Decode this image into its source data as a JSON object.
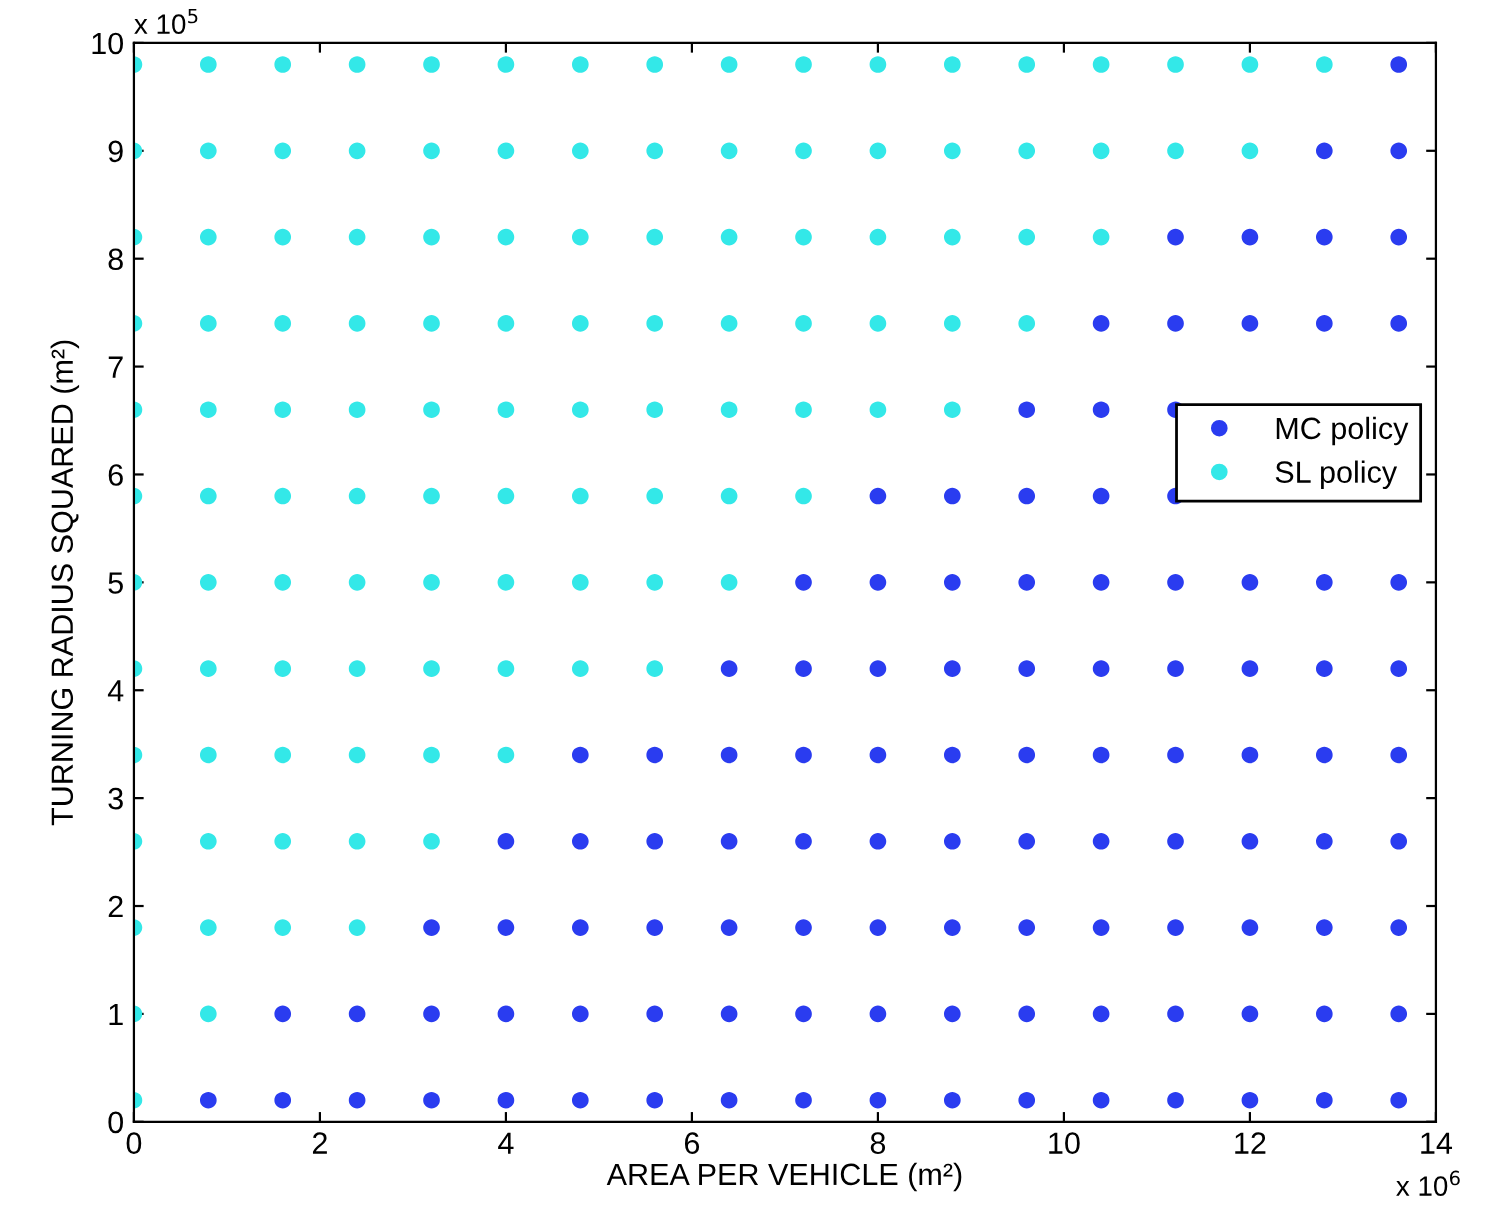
{
  "chart_data": {
    "type": "scatter",
    "xlabel": "AREA PER VEHICLE (m²)",
    "ylabel": "TURNING RADIUS SQUARED (m²)",
    "annotations": [
      "x 10$^{5}$",
      "x 10$^{6}$"
    ],
    "xlim": [
      0,
      14
    ],
    "xticks": [
      0,
      2,
      4,
      6,
      8,
      10,
      12,
      14
    ],
    "ylim": [
      0,
      10
    ],
    "yticks": [
      0,
      1,
      2,
      3,
      4,
      5,
      6,
      7,
      8,
      9,
      10
    ],
    "grid": false,
    "legend": "right",
    "marker": "circle",
    "series": [
      {
        "name": "MC policy",
        "color": "#2a3cf0",
        "x": [
          0.8,
          1.6,
          2.4,
          3.2,
          4.0,
          4.8,
          5.6,
          6.4,
          7.2,
          8.0,
          8.8,
          9.6,
          10.4,
          11.2,
          12.0,
          12.8,
          13.6,
          1.6,
          2.4,
          3.2,
          4.0,
          4.8,
          5.6,
          6.4,
          7.2,
          8.0,
          8.8,
          9.6,
          10.4,
          11.2,
          12.0,
          12.8,
          13.6,
          3.2,
          4.0,
          4.8,
          5.6,
          6.4,
          7.2,
          8.0,
          8.8,
          9.6,
          10.4,
          11.2,
          12.0,
          12.8,
          13.6,
          4.0,
          4.8,
          5.6,
          6.4,
          7.2,
          8.0,
          8.8,
          9.6,
          10.4,
          11.2,
          12.0,
          12.8,
          13.6,
          4.8,
          5.6,
          6.4,
          7.2,
          8.0,
          8.8,
          9.6,
          10.4,
          11.2,
          12.0,
          12.8,
          13.6,
          6.4,
          7.2,
          8.0,
          8.8,
          9.6,
          10.4,
          11.2,
          12.0,
          12.8,
          13.6,
          7.2,
          8.0,
          8.8,
          9.6,
          10.4,
          11.2,
          12.0,
          12.8,
          13.6,
          8.0,
          8.8,
          9.6,
          10.4,
          11.2,
          9.6,
          10.4,
          11.2,
          10.4,
          11.2,
          12.0,
          12.8,
          13.6,
          11.2,
          12.0,
          12.8,
          13.6,
          12.8,
          13.6,
          13.6
        ],
        "values": [
          0.2,
          0.2,
          0.2,
          0.2,
          0.2,
          0.2,
          0.2,
          0.2,
          0.2,
          0.2,
          0.2,
          0.2,
          0.2,
          0.2,
          0.2,
          0.2,
          0.2,
          1.0,
          1.0,
          1.0,
          1.0,
          1.0,
          1.0,
          1.0,
          1.0,
          1.0,
          1.0,
          1.0,
          1.0,
          1.0,
          1.0,
          1.0,
          1.0,
          1.8,
          1.8,
          1.8,
          1.8,
          1.8,
          1.8,
          1.8,
          1.8,
          1.8,
          1.8,
          1.8,
          1.8,
          1.8,
          1.8,
          2.6,
          2.6,
          2.6,
          2.6,
          2.6,
          2.6,
          2.6,
          2.6,
          2.6,
          2.6,
          2.6,
          2.6,
          2.6,
          3.4,
          3.4,
          3.4,
          3.4,
          3.4,
          3.4,
          3.4,
          3.4,
          3.4,
          3.4,
          3.4,
          3.4,
          4.2,
          4.2,
          4.2,
          4.2,
          4.2,
          4.2,
          4.2,
          4.2,
          4.2,
          4.2,
          5.0,
          5.0,
          5.0,
          5.0,
          5.0,
          5.0,
          5.0,
          5.0,
          5.0,
          5.8,
          5.8,
          5.8,
          5.8,
          5.8,
          6.6,
          6.6,
          6.6,
          7.4,
          7.4,
          7.4,
          7.4,
          7.4,
          8.2,
          8.2,
          8.2,
          8.2,
          9.0,
          9.0,
          9.8
        ]
      },
      {
        "name": "SL policy",
        "color": "#33e8e8",
        "x": [
          0,
          0,
          0.8,
          0,
          0.8,
          1.6,
          2.4,
          0,
          0.8,
          1.6,
          2.4,
          3.2,
          0,
          0.8,
          1.6,
          2.4,
          3.2,
          4.0,
          0,
          0.8,
          1.6,
          2.4,
          3.2,
          4.0,
          4.8,
          5.6,
          0,
          0.8,
          1.6,
          2.4,
          3.2,
          4.0,
          4.8,
          5.6,
          6.4,
          0,
          0.8,
          1.6,
          2.4,
          3.2,
          4.0,
          4.8,
          5.6,
          6.4,
          7.2,
          0,
          0.8,
          1.6,
          2.4,
          3.2,
          4.0,
          4.8,
          5.6,
          6.4,
          7.2,
          8.0,
          8.8,
          0,
          0.8,
          1.6,
          2.4,
          3.2,
          4.0,
          4.8,
          5.6,
          6.4,
          7.2,
          8.0,
          8.8,
          9.6,
          0,
          0.8,
          1.6,
          2.4,
          3.2,
          4.0,
          4.8,
          5.6,
          6.4,
          7.2,
          8.0,
          8.8,
          9.6,
          10.4,
          0,
          0.8,
          1.6,
          2.4,
          3.2,
          4.0,
          4.8,
          5.6,
          6.4,
          7.2,
          8.0,
          8.8,
          9.6,
          10.4,
          11.2,
          12.0,
          0,
          0.8,
          1.6,
          2.4,
          3.2,
          4.0,
          4.8,
          5.6,
          6.4,
          7.2,
          8.0,
          8.8,
          9.6,
          10.4,
          11.2,
          12.0,
          12.8
        ],
        "values": [
          0.2,
          1.0,
          1.0,
          1.8,
          1.8,
          1.8,
          1.8,
          2.6,
          2.6,
          2.6,
          2.6,
          2.6,
          3.4,
          3.4,
          3.4,
          3.4,
          3.4,
          3.4,
          4.2,
          4.2,
          4.2,
          4.2,
          4.2,
          4.2,
          4.2,
          4.2,
          5.0,
          5.0,
          5.0,
          5.0,
          5.0,
          5.0,
          5.0,
          5.0,
          5.0,
          5.8,
          5.8,
          5.8,
          5.8,
          5.8,
          5.8,
          5.8,
          5.8,
          5.8,
          5.8,
          6.6,
          6.6,
          6.6,
          6.6,
          6.6,
          6.6,
          6.6,
          6.6,
          6.6,
          6.6,
          6.6,
          6.6,
          7.4,
          7.4,
          7.4,
          7.4,
          7.4,
          7.4,
          7.4,
          7.4,
          7.4,
          7.4,
          7.4,
          7.4,
          7.4,
          8.2,
          8.2,
          8.2,
          8.2,
          8.2,
          8.2,
          8.2,
          8.2,
          8.2,
          8.2,
          8.2,
          8.2,
          8.2,
          8.2,
          9.0,
          9.0,
          9.0,
          9.0,
          9.0,
          9.0,
          9.0,
          9.0,
          9.0,
          9.0,
          9.0,
          9.0,
          9.0,
          9.0,
          9.0,
          9.0,
          9.8,
          9.8,
          9.8,
          9.8,
          9.8,
          9.8,
          9.8,
          9.8,
          9.8,
          9.8,
          9.8,
          9.8,
          9.8,
          9.8,
          9.8,
          9.8,
          9.8
        ]
      }
    ]
  }
}
